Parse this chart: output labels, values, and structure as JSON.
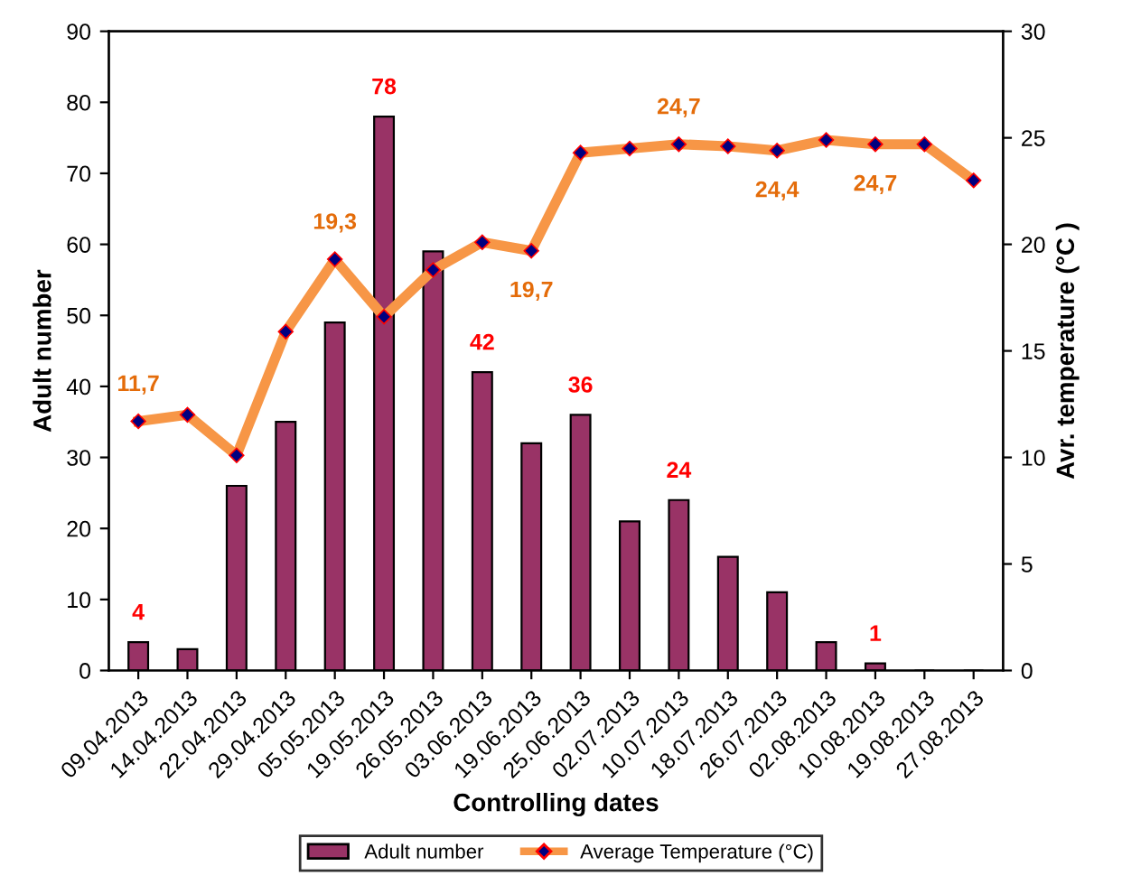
{
  "chart_data": {
    "type": "bar",
    "categories": [
      "09.04.2013",
      "14.04.2013",
      "22.04.2013",
      "29.04.2013",
      "05.05.2013",
      "19.05.2013",
      "26.05.2013",
      "03.06.2013",
      "19.06.2013",
      "25.06.2013",
      "02.07.2013",
      "10.07.2013",
      "18.07.2013",
      "26.07.2013",
      "02.08.2013",
      "10.08.2013",
      "19.08.2013",
      "27.08.2013"
    ],
    "series": [
      {
        "name": "Adult number",
        "color": "#993366",
        "values": [
          4,
          3,
          26,
          35,
          49,
          78,
          59,
          42,
          32,
          36,
          21,
          24,
          16,
          11,
          4,
          1,
          0,
          0
        ],
        "value_labels": [
          "4",
          null,
          null,
          null,
          null,
          "78",
          null,
          "42",
          null,
          "36",
          null,
          "24",
          null,
          null,
          null,
          "1",
          null,
          null
        ]
      },
      {
        "name": "Average Temperature (°C)",
        "type": "line",
        "axis": "y2",
        "color": "#f79646",
        "marker": "diamond",
        "values": [
          11.7,
          12.0,
          10.1,
          15.9,
          19.3,
          16.6,
          18.8,
          20.1,
          19.7,
          24.3,
          24.5,
          24.7,
          24.6,
          24.4,
          24.9,
          24.7,
          24.7,
          23.0
        ],
        "value_labels": [
          "11,7",
          null,
          null,
          null,
          "19,3",
          null,
          null,
          null,
          "19,7",
          null,
          null,
          "24,7",
          null,
          "24,4",
          null,
          "24,7",
          null,
          null
        ]
      }
    ],
    "xlabel": "Controlling dates",
    "ylabel": "Adult number",
    "y2label": "Avr. temperature (°C )",
    "ylim": [
      0,
      90
    ],
    "yticks": [
      0,
      10,
      20,
      30,
      40,
      50,
      60,
      70,
      80,
      90
    ],
    "y2lim": [
      0,
      30
    ],
    "y2ticks": [
      0,
      5,
      10,
      15,
      20,
      25,
      30
    ],
    "grid": false,
    "legend": "bottom"
  }
}
